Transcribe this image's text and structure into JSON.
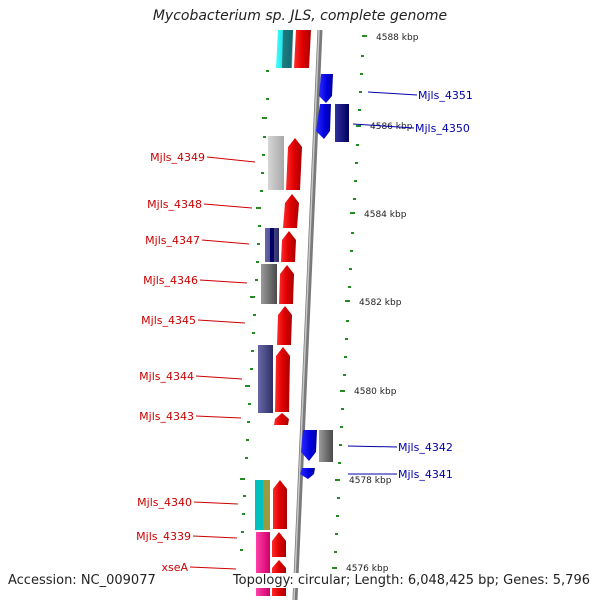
{
  "header": {
    "title": "Mycobacterium sp. JLS, complete genome"
  },
  "footer": {
    "accession": "Accession: NC_009077",
    "summary": "Topology: circular; Length: 6,048,425 bp; Genes: 5,796"
  },
  "scale_labels": [
    "4588 kbp",
    "4586 kbp",
    "4584 kbp",
    "4582 kbp",
    "4580 kbp",
    "4578 kbp",
    "4576 kbp"
  ],
  "gene_labels_left": [
    "Mjls_4349",
    "Mjls_4348",
    "Mjls_4347",
    "Mjls_4346",
    "Mjls_4345",
    "Mjls_4344",
    "Mjls_4343",
    "Mjls_4340",
    "Mjls_4339",
    "xseA"
  ],
  "gene_labels_right": [
    "Mjls_4351",
    "Mjls_4350",
    "Mjls_4342",
    "Mjls_4341"
  ],
  "colors": {
    "forward_gene": "#ff0000",
    "reverse_gene": "#0000ee",
    "backbone": "#888888",
    "tick": "#228b22",
    "label_left": "#cc0000",
    "label_right": "#0000aa"
  }
}
